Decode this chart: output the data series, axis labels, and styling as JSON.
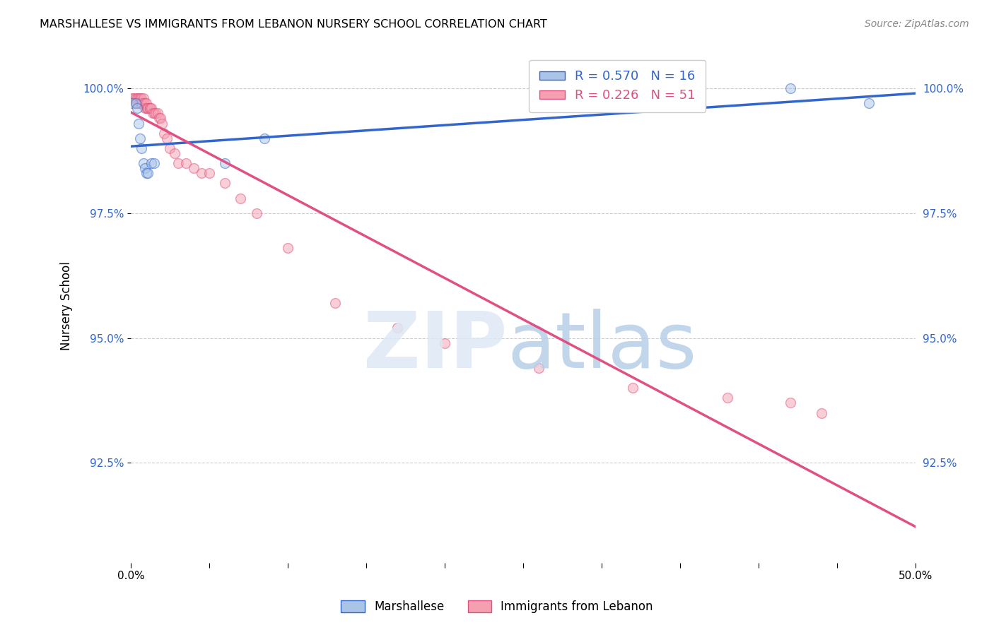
{
  "title": "MARSHALLESE VS IMMIGRANTS FROM LEBANON NURSERY SCHOOL CORRELATION CHART",
  "source": "Source: ZipAtlas.com",
  "ylabel": "Nursery School",
  "xlim": [
    0.0,
    0.5
  ],
  "ylim": [
    0.905,
    1.008
  ],
  "background_color": "#ffffff",
  "marshallese_color": "#aac4e8",
  "lebanon_color": "#f4a0b0",
  "marshallese_line_color": "#3366cc",
  "lebanon_line_color": "#e05080",
  "legend_R_marshallese": "R = 0.570",
  "legend_N_marshallese": "N = 16",
  "legend_R_lebanon": "R = 0.226",
  "legend_N_lebanon": "N = 51",
  "grid_yticks": [
    0.925,
    0.95,
    0.975,
    1.0
  ],
  "grid_color": "#cccccc",
  "ytick_labels_left": [
    "92.5%",
    "95.0%",
    "97.5%",
    "100.0%"
  ],
  "ytick_labels_right": [
    "92.5%",
    "95.0%",
    "97.5%",
    "100.0%"
  ],
  "marshallese_x": [
    0.001,
    0.003,
    0.004,
    0.005,
    0.006,
    0.007,
    0.008,
    0.009,
    0.01,
    0.011,
    0.013,
    0.015,
    0.06,
    0.085,
    0.42,
    0.47
  ],
  "marshallese_y": [
    0.997,
    0.997,
    0.996,
    0.993,
    0.99,
    0.988,
    0.985,
    0.984,
    0.983,
    0.983,
    0.985,
    0.985,
    0.985,
    0.99,
    1.0,
    0.997
  ],
  "lebanon_x": [
    0.001,
    0.002,
    0.003,
    0.003,
    0.004,
    0.004,
    0.005,
    0.005,
    0.006,
    0.006,
    0.007,
    0.007,
    0.008,
    0.008,
    0.009,
    0.009,
    0.01,
    0.01,
    0.011,
    0.011,
    0.012,
    0.012,
    0.013,
    0.014,
    0.015,
    0.016,
    0.017,
    0.018,
    0.019,
    0.02,
    0.021,
    0.023,
    0.025,
    0.028,
    0.03,
    0.035,
    0.04,
    0.045,
    0.05,
    0.06,
    0.07,
    0.08,
    0.1,
    0.13,
    0.17,
    0.2,
    0.26,
    0.32,
    0.38,
    0.42,
    0.44
  ],
  "lebanon_y": [
    0.998,
    0.998,
    0.998,
    0.997,
    0.998,
    0.997,
    0.998,
    0.997,
    0.998,
    0.997,
    0.998,
    0.997,
    0.998,
    0.997,
    0.997,
    0.996,
    0.997,
    0.996,
    0.996,
    0.996,
    0.996,
    0.996,
    0.996,
    0.995,
    0.995,
    0.995,
    0.995,
    0.994,
    0.994,
    0.993,
    0.991,
    0.99,
    0.988,
    0.987,
    0.985,
    0.985,
    0.984,
    0.983,
    0.983,
    0.981,
    0.978,
    0.975,
    0.968,
    0.957,
    0.952,
    0.949,
    0.944,
    0.94,
    0.938,
    0.937,
    0.935
  ],
  "marker_size": 100,
  "marker_alpha": 0.5,
  "line_width": 2.5
}
